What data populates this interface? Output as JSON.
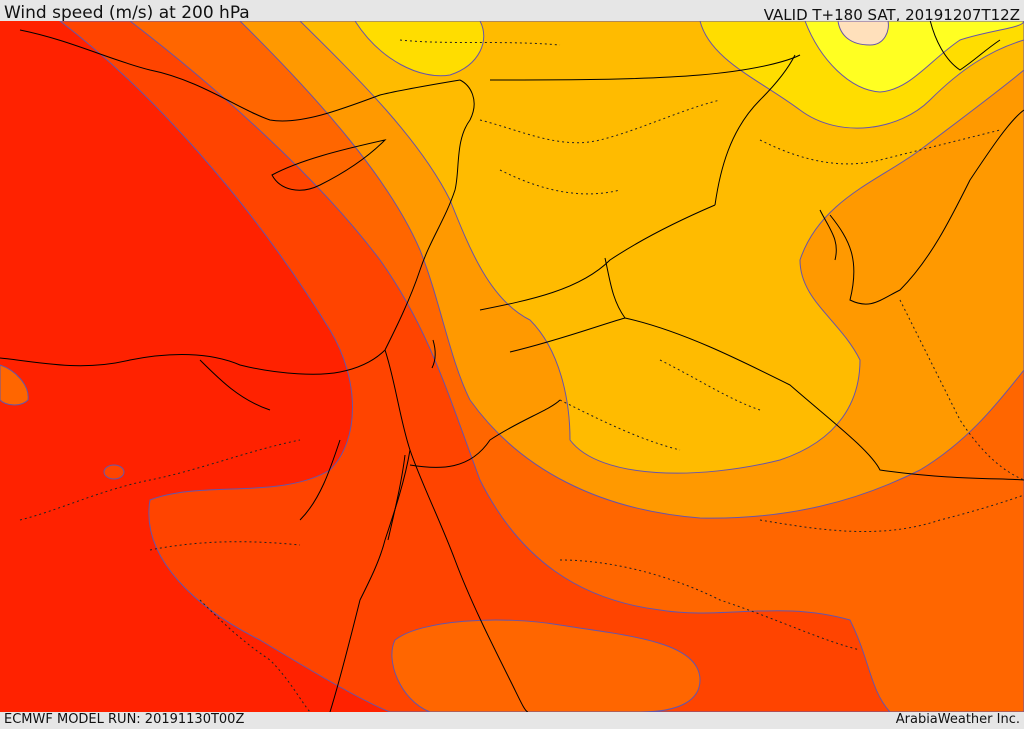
{
  "header": {
    "title": "Wind speed (m/s) at 200 hPa",
    "valid": "VALID T+180 SAT, 20191207T12Z"
  },
  "footer": {
    "model_run": "ECMWF MODEL RUN: 20191130T00Z",
    "credit": "ArabiaWeather Inc."
  },
  "map": {
    "palette": {
      "band_1": "#ff2200",
      "band_2": "#ff4400",
      "band_3": "#ff6600",
      "band_4": "#ff9900",
      "band_5": "#ffbb00",
      "band_6": "#ffdd00",
      "band_7": "#ffff22",
      "band_8": "#ffe0bb"
    },
    "contour_color": "#6655aa"
  }
}
